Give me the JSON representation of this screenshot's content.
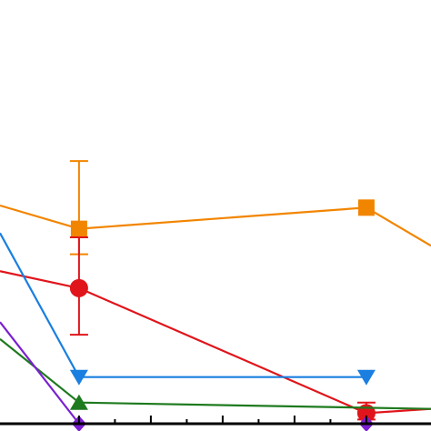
{
  "chart_data": {
    "type": "line",
    "xlim": [
      -1.1,
      4.9
    ],
    "ylim": [
      0,
      100
    ],
    "x_ticks": [
      0,
      1,
      2,
      3,
      4
    ],
    "grid": false,
    "legend": "none",
    "series": [
      {
        "color": "#F28500",
        "marker": "square",
        "points": [
          {
            "x": -1.1,
            "y": 51.5
          },
          {
            "x": 0,
            "y": 46
          },
          {
            "x": 4,
            "y": 51
          },
          {
            "x": 4.9,
            "y": 42
          }
        ],
        "error_bars": [
          {
            "x": 0,
            "low": 40,
            "high": 62
          }
        ]
      },
      {
        "color": "#E0151B",
        "marker": "circle",
        "points": [
          {
            "x": -1.1,
            "y": 36
          },
          {
            "x": 0,
            "y": 32
          },
          {
            "x": 4,
            "y": 2.5
          },
          {
            "x": 4.9,
            "y": 3.5
          }
        ],
        "error_bars": [
          {
            "x": 0,
            "low": 21,
            "high": 44
          },
          {
            "x": 4,
            "low": 1,
            "high": 5
          }
        ]
      },
      {
        "color": "#1A7FE0",
        "marker": "triangle-down",
        "points": [
          {
            "x": -1.1,
            "y": 45
          },
          {
            "x": 0,
            "y": 11
          },
          {
            "x": 4,
            "y": 11
          }
        ]
      },
      {
        "color": "#1E7A1E",
        "marker": "triangle-up",
        "points": [
          {
            "x": -1.1,
            "y": 20
          },
          {
            "x": 0,
            "y": 5
          },
          {
            "x": 4.9,
            "y": 3.5
          }
        ]
      },
      {
        "color": "#7A1FD1",
        "marker": "diamond",
        "points": [
          {
            "x": -1.1,
            "y": 24
          },
          {
            "x": 0,
            "y": 0
          },
          {
            "x": 4,
            "y": 0
          },
          {
            "x": 4.9,
            "y": 0
          }
        ]
      }
    ]
  }
}
